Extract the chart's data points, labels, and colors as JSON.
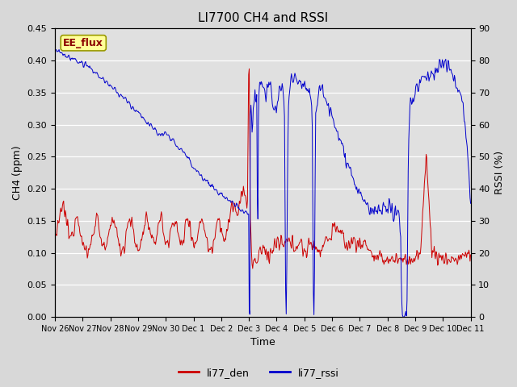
{
  "title": "LI7700 CH4 and RSSI",
  "xlabel": "Time",
  "ylabel_left": "CH4 (ppm)",
  "ylabel_right": "RSSI (%)",
  "ylim_left": [
    0.0,
    0.45
  ],
  "ylim_right": [
    0,
    90
  ],
  "yticks_left": [
    0.0,
    0.05,
    0.1,
    0.15,
    0.2,
    0.25,
    0.3,
    0.35,
    0.4,
    0.45
  ],
  "yticks_right": [
    0,
    10,
    20,
    30,
    40,
    50,
    60,
    70,
    80,
    90
  ],
  "color_ch4": "#cc0000",
  "color_rssi": "#0000cc",
  "background_color": "#d8d8d8",
  "axes_background": "#e0e0e0",
  "grid_color": "#ffffff",
  "annotation_text": "EE_flux",
  "annotation_facecolor": "#ffff99",
  "annotation_edgecolor": "#999900",
  "legend_labels": [
    "li77_den",
    "li77_rssi"
  ],
  "title_fontsize": 11,
  "label_fontsize": 9,
  "tick_fontsize": 8,
  "xtick_labels": [
    "Nov 26",
    "Nov 27",
    "Nov 28",
    "Nov 29",
    "Nov 30",
    "Dec 1",
    "Dec 2",
    "Dec 3",
    "Dec 4",
    "Dec 5",
    "Dec 6",
    "Dec 7",
    "Dec 8",
    "Dec 9",
    "Dec 10",
    "Dec 11"
  ]
}
